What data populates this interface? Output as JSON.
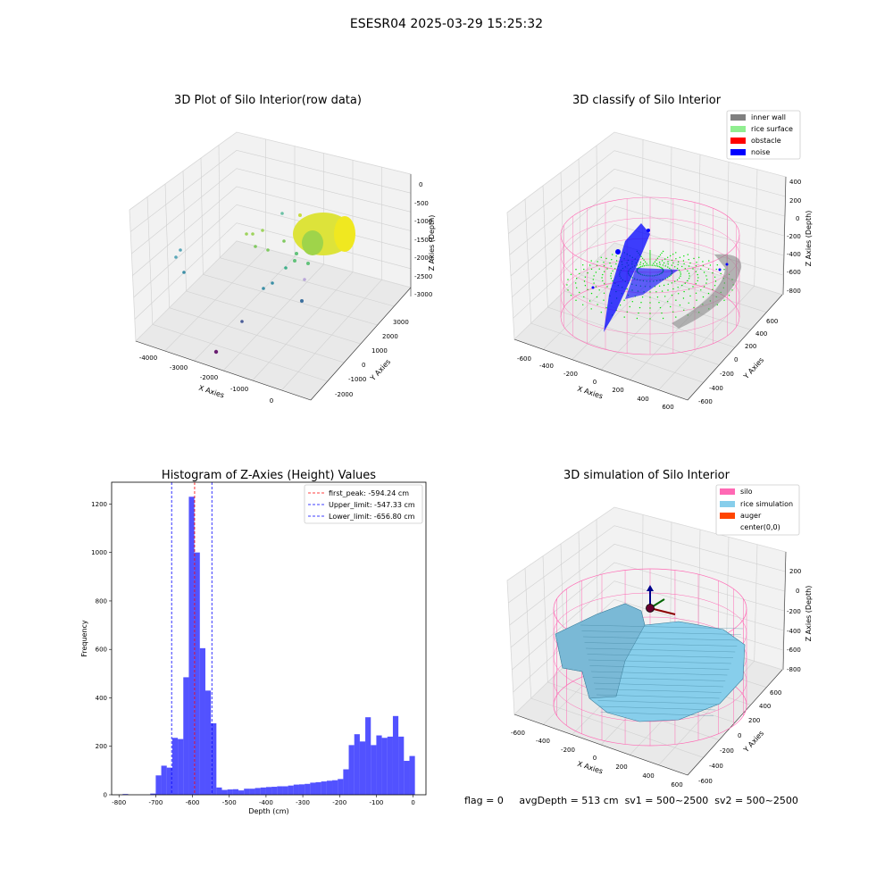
{
  "figure_title": "ESESR04 2025-03-29 15:25:32",
  "status_line": {
    "flag": "flag = 0",
    "avg_depth": "avgDepth = 513 cm",
    "sv1": "sv1 = 500~2500",
    "sv2": "sv2 = 500~2500"
  },
  "colors": {
    "histogram_bar": "#0000ff",
    "first_peak_line": "#ff0000",
    "limit_lines": "#0000ff",
    "inner_wall": "#808080",
    "rice_surface": "#90ee90",
    "obstacle": "#ff0000",
    "noise": "#0000ff",
    "silo": "#ff69b4",
    "rice_simulation": "#87ceeb",
    "auger": "#ff4500"
  },
  "chart_data": [
    {
      "type": "scatter",
      "projection": "3d",
      "title": "3D Plot of Silo Interior(row data)",
      "xlabel": "X Axies",
      "ylabel": "Y Axies",
      "zlabel": "Z Axies (Depth)",
      "x_ticks": [
        "-4000",
        "-3000",
        "-2000",
        "-1000",
        "0"
      ],
      "y_ticks": [
        "-2000",
        "-1000",
        "0",
        "1000",
        "2000",
        "3000"
      ],
      "z_ticks": [
        "0",
        "-500",
        "-1000",
        "-1500",
        "-2000",
        "-2500",
        "-3000"
      ],
      "grid": true
    },
    {
      "type": "scatter",
      "projection": "3d",
      "title": "3D classify of Silo Interior",
      "xlabel": "X Axies",
      "ylabel": "Y Axies",
      "zlabel": "Z Axies (Depth)",
      "x_ticks": [
        "-600",
        "-400",
        "-200",
        "0",
        "200",
        "400",
        "600"
      ],
      "y_ticks": [
        "-600",
        "-400",
        "-200",
        "0",
        "200",
        "400",
        "600"
      ],
      "z_ticks": [
        "400",
        "200",
        "0",
        "-200",
        "-400",
        "-600",
        "-800"
      ],
      "legend": [
        "inner wall",
        "rice surface",
        "obstacle",
        "noise"
      ],
      "legend_position": "top-right",
      "grid": true
    },
    {
      "type": "bar",
      "title": "Histogram of Z-Axies (Height) Values",
      "xlabel": "Depth (cm)",
      "ylabel": "Frequency",
      "xlim": [
        -820,
        35
      ],
      "ylim": [
        0,
        1290
      ],
      "x_ticks": [
        -800,
        -700,
        -600,
        -500,
        -400,
        -300,
        -200,
        -100,
        0
      ],
      "y_ticks": [
        0,
        200,
        400,
        600,
        800,
        1000,
        1200
      ],
      "bins": [
        {
          "x0": -790,
          "x1": -775,
          "value": 3
        },
        {
          "x0": -715,
          "x1": -700,
          "value": 5
        },
        {
          "x0": -700,
          "x1": -685,
          "value": 80
        },
        {
          "x0": -685,
          "x1": -670,
          "value": 120
        },
        {
          "x0": -670,
          "x1": -655,
          "value": 112
        },
        {
          "x0": -655,
          "x1": -640,
          "value": 235
        },
        {
          "x0": -640,
          "x1": -625,
          "value": 230
        },
        {
          "x0": -625,
          "x1": -610,
          "value": 485
        },
        {
          "x0": -610,
          "x1": -595,
          "value": 1230
        },
        {
          "x0": -595,
          "x1": -580,
          "value": 1000
        },
        {
          "x0": -580,
          "x1": -565,
          "value": 605
        },
        {
          "x0": -565,
          "x1": -550,
          "value": 430
        },
        {
          "x0": -550,
          "x1": -535,
          "value": 295
        },
        {
          "x0": -535,
          "x1": -520,
          "value": 30
        },
        {
          "x0": -520,
          "x1": -505,
          "value": 20
        },
        {
          "x0": -505,
          "x1": -490,
          "value": 22
        },
        {
          "x0": -490,
          "x1": -475,
          "value": 23
        },
        {
          "x0": -475,
          "x1": -460,
          "value": 18
        },
        {
          "x0": -460,
          "x1": -445,
          "value": 25
        },
        {
          "x0": -445,
          "x1": -430,
          "value": 25
        },
        {
          "x0": -430,
          "x1": -415,
          "value": 28
        },
        {
          "x0": -415,
          "x1": -400,
          "value": 30
        },
        {
          "x0": -400,
          "x1": -385,
          "value": 32
        },
        {
          "x0": -385,
          "x1": -370,
          "value": 33
        },
        {
          "x0": -370,
          "x1": -355,
          "value": 35
        },
        {
          "x0": -355,
          "x1": -340,
          "value": 35
        },
        {
          "x0": -340,
          "x1": -325,
          "value": 38
        },
        {
          "x0": -325,
          "x1": -310,
          "value": 42
        },
        {
          "x0": -310,
          "x1": -295,
          "value": 43
        },
        {
          "x0": -295,
          "x1": -280,
          "value": 45
        },
        {
          "x0": -280,
          "x1": -265,
          "value": 50
        },
        {
          "x0": -265,
          "x1": -250,
          "value": 52
        },
        {
          "x0": -250,
          "x1": -235,
          "value": 55
        },
        {
          "x0": -235,
          "x1": -220,
          "value": 58
        },
        {
          "x0": -220,
          "x1": -205,
          "value": 60
        },
        {
          "x0": -205,
          "x1": -190,
          "value": 65
        },
        {
          "x0": -190,
          "x1": -175,
          "value": 105
        },
        {
          "x0": -175,
          "x1": -160,
          "value": 205
        },
        {
          "x0": -160,
          "x1": -145,
          "value": 250
        },
        {
          "x0": -145,
          "x1": -130,
          "value": 220
        },
        {
          "x0": -130,
          "x1": -115,
          "value": 320
        },
        {
          "x0": -115,
          "x1": -100,
          "value": 205
        },
        {
          "x0": -100,
          "x1": -85,
          "value": 245
        },
        {
          "x0": -85,
          "x1": -70,
          "value": 235
        },
        {
          "x0": -70,
          "x1": -55,
          "value": 240
        },
        {
          "x0": -55,
          "x1": -40,
          "value": 325
        },
        {
          "x0": -40,
          "x1": -25,
          "value": 240
        },
        {
          "x0": -25,
          "x1": -10,
          "value": 140
        },
        {
          "x0": -10,
          "x1": 5,
          "value": 160
        }
      ],
      "vlines": [
        {
          "x": -594.24,
          "label": "first_peak: -594.24 cm",
          "style": "dashed",
          "color": "#ff0000"
        },
        {
          "x": -547.33,
          "label": "Upper_limit: -547.33 cm",
          "style": "dashed",
          "color": "#0000ff"
        },
        {
          "x": -656.8,
          "label": "Lower_limit: -656.80 cm",
          "style": "dashed",
          "color": "#0000ff"
        }
      ],
      "legend_position": "top-right"
    },
    {
      "type": "surface",
      "projection": "3d",
      "title": "3D simulation of Silo Interior",
      "xlabel": "X Axies",
      "ylabel": "Y Axies",
      "zlabel": "Z Axies (Depth)",
      "x_ticks": [
        "-600",
        "-400",
        "-200",
        "0",
        "200",
        "400",
        "600"
      ],
      "y_ticks": [
        "-600",
        "-400",
        "-200",
        "0",
        "200",
        "400",
        "600"
      ],
      "z_ticks": [
        "200",
        "0",
        "-200",
        "-400",
        "-600",
        "-800"
      ],
      "legend": [
        "silo",
        "rice simulation",
        "auger",
        "center(0,0)"
      ],
      "legend_position": "top-right",
      "grid": true
    }
  ]
}
